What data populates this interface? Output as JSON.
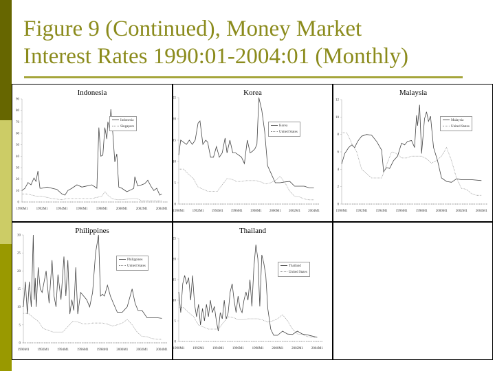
{
  "slide": {
    "title_line1": "Figure 9 (Continued), Money Market",
    "title_line2": "Interest Rates 1990:01-2004:01 (Monthly)",
    "colors": {
      "bar_dark": "#666600",
      "bar_light": "#cccc66",
      "bar_mid": "#999900",
      "title": "#8b8b1c"
    }
  },
  "chart_data": [
    {
      "type": "line",
      "title": "Indonesia",
      "x_tick_labels": [
        "1990M1",
        "1992M1",
        "1994M1",
        "1996M1",
        "1998M1",
        "2000M1",
        "2002M1",
        "2004M1"
      ],
      "y_ticks": [
        0,
        10,
        20,
        30,
        40,
        50,
        60,
        70,
        80,
        90
      ],
      "ylim": [
        0,
        90
      ],
      "legend": [
        "Indonesia",
        "Singapore"
      ],
      "series": [
        {
          "name": "Indonesia",
          "style": "solid",
          "x": [
            1990.0,
            1990.3,
            1990.6,
            1990.9,
            1991.2,
            1991.4,
            1991.6,
            1991.8,
            1992.0,
            1992.5,
            1993.0,
            1993.5,
            1994.0,
            1994.3,
            1994.6,
            1995.0,
            1995.5,
            1996.0,
            1996.5,
            1997.0,
            1997.5,
            1997.7,
            1997.9,
            1998.1,
            1998.3,
            1998.5,
            1998.6,
            1998.8,
            1998.9,
            1999.1,
            1999.3,
            1999.5,
            1999.7,
            2000.0,
            2000.5,
            2001.0,
            2001.2,
            2001.3,
            2001.6,
            2002.0,
            2002.3,
            2002.6,
            2002.9,
            2003.2,
            2003.5,
            2003.8,
            2004.0
          ],
          "y": [
            10,
            12,
            17,
            15,
            21,
            18,
            27,
            12,
            12,
            13,
            12,
            11,
            7,
            6,
            10,
            12,
            15,
            13,
            14,
            15,
            12,
            65,
            40,
            41,
            65,
            55,
            70,
            63,
            81,
            60,
            35,
            42,
            13,
            12,
            9,
            11,
            12,
            22,
            14,
            15,
            16,
            19,
            14,
            10,
            12,
            6,
            7
          ]
        },
        {
          "name": "Singapore",
          "style": "dotted",
          "x": [
            1990.0,
            1990.5,
            1991.0,
            1991.5,
            1992.0,
            1992.5,
            1993.0,
            1994.0,
            1994.5,
            1995.0,
            1996.0,
            1997.0,
            1997.5,
            1998.0,
            1998.3,
            1998.6,
            1999.0,
            1999.5,
            2000.0,
            2001.0,
            2001.5,
            2002.0,
            2003.0,
            2004.0
          ],
          "y": [
            7,
            7,
            6,
            5,
            5,
            4,
            3,
            2,
            3,
            3,
            3,
            3,
            4,
            5,
            9,
            6,
            3,
            2,
            2,
            3,
            3,
            1,
            1,
            1
          ]
        }
      ]
    },
    {
      "type": "line",
      "title": "Korea",
      "x_tick_labels": [
        "1990M1",
        "1992M1",
        "1994M1",
        "1996M1",
        "1998M1",
        "2000M1",
        "2002M1",
        "2004M1"
      ],
      "y_ticks": [
        0,
        5,
        10,
        15,
        20,
        25
      ],
      "ylim": [
        0,
        25
      ],
      "legend": [
        "Korea",
        "United States"
      ],
      "series": [
        {
          "name": "Korea",
          "style": "solid",
          "x": [
            1990.0,
            1990.2,
            1990.5,
            1990.8,
            1991.1,
            1991.4,
            1991.7,
            1992.0,
            1992.2,
            1992.5,
            1992.8,
            1993.0,
            1993.3,
            1993.6,
            1993.9,
            1994.2,
            1994.5,
            1994.8,
            1995.0,
            1995.3,
            1995.6,
            1995.9,
            1996.2,
            1996.5,
            1996.8,
            1997.1,
            1997.4,
            1997.7,
            1997.9,
            1998.1,
            1998.3,
            1998.6,
            1998.9,
            1999.2,
            1999.6,
            2000.0,
            2000.5,
            2001.0,
            2001.5,
            2002.0,
            2002.5,
            2003.0,
            2003.5,
            2004.0
          ],
          "y": [
            11.5,
            15,
            14.5,
            14,
            15,
            14,
            15,
            19,
            19.5,
            14,
            15,
            14.5,
            11,
            11,
            13.5,
            11,
            12,
            15.5,
            12,
            15,
            12,
            12,
            11.5,
            11,
            9.5,
            15,
            12,
            12.5,
            13,
            14,
            25,
            22,
            17,
            9,
            7,
            5,
            5,
            5.2,
            5.3,
            4.2,
            4.2,
            4.2,
            3.8,
            3.8
          ]
        },
        {
          "name": "United States",
          "style": "dotted",
          "x": [
            1990.0,
            1990.5,
            1991.0,
            1991.5,
            1992.0,
            1992.5,
            1993.0,
            1993.5,
            1994.0,
            1994.5,
            1995.0,
            1995.5,
            1996.0,
            1996.5,
            1997.0,
            1997.5,
            1998.0,
            1998.5,
            1999.0,
            1999.5,
            2000.0,
            2000.5,
            2001.0,
            2001.5,
            2002.0,
            2002.5,
            2003.0,
            2003.5,
            2004.0
          ],
          "y": [
            8.2,
            8.2,
            7,
            6,
            4,
            3.5,
            3,
            3,
            3,
            4.5,
            6,
            5.8,
            5.3,
            5.3,
            5.5,
            5.5,
            5.5,
            5.2,
            4.7,
            5,
            5.5,
            6.5,
            5,
            3,
            1.8,
            1.7,
            1.2,
            1,
            1
          ]
        }
      ]
    },
    {
      "type": "line",
      "title": "Malaysia",
      "x_tick_labels": [
        "1990M1",
        "1992M1",
        "1994M1",
        "1996M1",
        "1998M1",
        "2000M1",
        "2002M1",
        "2004M1"
      ],
      "y_ticks": [
        0,
        2,
        4,
        6,
        8,
        10,
        12
      ],
      "ylim": [
        0,
        12
      ],
      "legend": [
        "Malaysia",
        "United States"
      ],
      "series": [
        {
          "name": "Malaysia",
          "style": "solid",
          "x": [
            1990.0,
            1990.3,
            1990.7,
            1991.0,
            1991.3,
            1991.6,
            1992.0,
            1992.5,
            1993.0,
            1993.5,
            1993.8,
            1994.0,
            1994.2,
            1994.5,
            1994.8,
            1995.2,
            1995.6,
            1996.0,
            1996.3,
            1996.6,
            1997.0,
            1997.3,
            1997.5,
            1997.6,
            1997.8,
            1998.0,
            1998.3,
            1998.5,
            1998.7,
            1998.9,
            1999.2,
            1999.6,
            2000.0,
            2000.5,
            2001.0,
            2001.5,
            2002.0,
            2003.0,
            2004.0
          ],
          "y": [
            4.6,
            5.8,
            6.5,
            6.8,
            6.5,
            7.2,
            7.8,
            8,
            7.9,
            7.2,
            6.6,
            6.2,
            3.7,
            4.2,
            4.1,
            5,
            5.5,
            7,
            6.8,
            7.2,
            7.3,
            6.5,
            10.2,
            9,
            11.4,
            5.8,
            9.8,
            10.6,
            9.5,
            10.1,
            6.5,
            5,
            3,
            2.6,
            2.5,
            2.9,
            2.8,
            2.8,
            2.7
          ]
        },
        {
          "name": "United States",
          "style": "dotted",
          "x": [
            1990.0,
            1990.5,
            1991.0,
            1991.5,
            1992.0,
            1992.5,
            1993.0,
            1993.5,
            1994.0,
            1994.5,
            1995.0,
            1995.5,
            1996.0,
            1996.5,
            1997.0,
            1997.5,
            1998.0,
            1998.5,
            1999.0,
            1999.5,
            2000.0,
            2000.5,
            2001.0,
            2001.5,
            2002.0,
            2002.5,
            2003.0,
            2003.5,
            2004.0
          ],
          "y": [
            8.2,
            8.2,
            7,
            6,
            4,
            3.5,
            3,
            3,
            3,
            4.5,
            6,
            5.8,
            5.3,
            5.3,
            5.5,
            5.5,
            5.5,
            5.2,
            4.7,
            5,
            5.5,
            6.5,
            5,
            3,
            1.8,
            1.7,
            1.2,
            1,
            1
          ]
        }
      ]
    },
    {
      "type": "line",
      "title": "Philippines",
      "x_tick_labels": [
        "1990M1",
        "1992M1",
        "1994M1",
        "1996M1",
        "1998M1",
        "2000M1",
        "2002M1",
        "2004M1"
      ],
      "y_ticks": [
        0,
        5,
        10,
        15,
        20,
        25,
        30
      ],
      "ylim": [
        0,
        30
      ],
      "legend": [
        "Philippines",
        "United States"
      ],
      "series": [
        {
          "name": "Philippines",
          "style": "solid",
          "x": [
            1990.0,
            1990.2,
            1990.4,
            1990.6,
            1990.8,
            1991.0,
            1991.1,
            1991.2,
            1991.3,
            1991.5,
            1991.7,
            1991.9,
            1992.1,
            1992.3,
            1992.6,
            1992.9,
            1993.1,
            1993.3,
            1993.5,
            1993.8,
            1994.1,
            1994.3,
            1994.5,
            1994.7,
            1994.9,
            1995.1,
            1995.3,
            1995.5,
            1995.8,
            1996.1,
            1996.4,
            1996.7,
            1997.0,
            1997.3,
            1997.6,
            1997.8,
            1998.0,
            1998.2,
            1998.5,
            1998.8,
            1999.1,
            1999.5,
            2000.0,
            2000.5,
            2001.0,
            2001.3,
            2001.6,
            2002.0,
            2002.5,
            2003.0,
            2003.5,
            2004.0
          ],
          "y": [
            10,
            17,
            8,
            17,
            10,
            30,
            12,
            18,
            10,
            21,
            15,
            14,
            17,
            20,
            11,
            23,
            13,
            10,
            19,
            12,
            24,
            13,
            23,
            8,
            12,
            9,
            21,
            8,
            14,
            13,
            12,
            10,
            14,
            25,
            30,
            13,
            13.5,
            13,
            16,
            13,
            11,
            8.5,
            8.5,
            10,
            15,
            11,
            9,
            9,
            7,
            7,
            7,
            6.8
          ]
        },
        {
          "name": "United States",
          "style": "dotted",
          "x": [
            1990.0,
            1990.5,
            1991.0,
            1991.5,
            1992.0,
            1992.5,
            1993.0,
            1993.5,
            1994.0,
            1994.5,
            1995.0,
            1995.5,
            1996.0,
            1996.5,
            1997.0,
            1997.5,
            1998.0,
            1998.5,
            1999.0,
            1999.5,
            2000.0,
            2000.5,
            2001.0,
            2001.5,
            2002.0,
            2002.5,
            2003.0,
            2003.5,
            2004.0
          ],
          "y": [
            8.2,
            8.2,
            7,
            6,
            4,
            3.5,
            3,
            3,
            3,
            4.5,
            6,
            5.8,
            5.3,
            5.3,
            5.5,
            5.5,
            5.5,
            5.2,
            4.7,
            5,
            5.5,
            6.5,
            5,
            3,
            1.8,
            1.7,
            1.2,
            1,
            1
          ]
        }
      ]
    },
    {
      "type": "line",
      "title": "Thailand",
      "x_tick_labels": [
        "1990M1",
        "1992M1",
        "1994M1",
        "1996M1",
        "1998M1",
        "2000M1",
        "2002M1",
        "2004M1"
      ],
      "y_ticks": [
        0,
        5,
        10,
        15,
        20,
        25
      ],
      "ylim": [
        0,
        25
      ],
      "legend": [
        "Thailand",
        "United States"
      ],
      "series": [
        {
          "name": "Thailand",
          "style": "solid",
          "x": [
            1990.0,
            1990.2,
            1990.4,
            1990.6,
            1990.8,
            1991.0,
            1991.2,
            1991.4,
            1991.6,
            1991.8,
            1992.0,
            1992.2,
            1992.4,
            1992.6,
            1992.8,
            1993.0,
            1993.2,
            1993.4,
            1993.6,
            1993.8,
            1994.0,
            1994.2,
            1994.4,
            1994.6,
            1994.8,
            1995.0,
            1995.2,
            1995.4,
            1995.6,
            1995.8,
            1996.0,
            1996.2,
            1996.4,
            1996.6,
            1996.8,
            1997.0,
            1997.2,
            1997.4,
            1997.6,
            1997.8,
            1998.0,
            1998.2,
            1998.4,
            1998.6,
            1998.8,
            1999.0,
            1999.3,
            1999.6,
            2000.0,
            2000.5,
            2001.0,
            2001.5,
            2002.0,
            2002.5,
            2003.0,
            2003.5,
            2004.0
          ],
          "y": [
            12,
            7,
            14,
            16,
            14,
            15.5,
            10,
            16,
            9,
            6,
            9,
            4,
            8,
            5,
            9,
            6,
            10,
            7,
            8.5,
            5,
            2.5,
            7,
            5.5,
            10,
            5.5,
            7,
            12,
            14,
            10,
            7,
            11,
            8,
            7,
            10,
            12,
            10,
            15,
            8.5,
            18,
            23.5,
            20,
            8.5,
            21,
            19,
            16,
            8,
            3,
            1.5,
            1.5,
            2.5,
            1.8,
            1.7,
            2.5,
            1.8,
            1.6,
            1.3,
            1
          ]
        },
        {
          "name": "United States",
          "style": "dotted",
          "x": [
            1990.0,
            1990.5,
            1991.0,
            1991.5,
            1992.0,
            1992.5,
            1993.0,
            1993.5,
            1994.0,
            1994.5,
            1995.0,
            1995.5,
            1996.0,
            1996.5,
            1997.0,
            1997.5,
            1998.0,
            1998.5,
            1999.0,
            1999.5,
            2000.0,
            2000.5,
            2001.0,
            2001.5,
            2002.0,
            2002.5,
            2003.0,
            2003.5,
            2004.0
          ],
          "y": [
            8.2,
            8.2,
            7,
            6,
            4,
            3.5,
            3,
            3,
            3,
            4.5,
            6,
            5.8,
            5.3,
            5.3,
            5.5,
            5.5,
            5.5,
            5.2,
            4.7,
            5,
            5.5,
            6.5,
            5,
            3,
            1.8,
            1.7,
            1.2,
            1,
            1
          ]
        }
      ]
    }
  ]
}
